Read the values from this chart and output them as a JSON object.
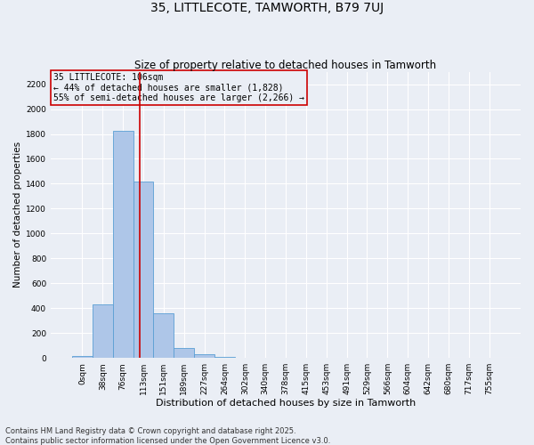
{
  "title": "35, LITTLECOTE, TAMWORTH, B79 7UJ",
  "subtitle": "Size of property relative to detached houses in Tamworth",
  "xlabel": "Distribution of detached houses by size in Tamworth",
  "ylabel": "Number of detached properties",
  "footnote1": "Contains HM Land Registry data © Crown copyright and database right 2025.",
  "footnote2": "Contains public sector information licensed under the Open Government Licence v3.0.",
  "annotation_title": "35 LITTLECOTE: 106sqm",
  "annotation_line1": "← 44% of detached houses are smaller (1,828)",
  "annotation_line2": "55% of semi-detached houses are larger (2,266) →",
  "bar_categories": [
    "0sqm",
    "38sqm",
    "76sqm",
    "113sqm",
    "151sqm",
    "189sqm",
    "227sqm",
    "264sqm",
    "302sqm",
    "340sqm",
    "378sqm",
    "415sqm",
    "453sqm",
    "491sqm",
    "529sqm",
    "566sqm",
    "604sqm",
    "642sqm",
    "680sqm",
    "717sqm",
    "755sqm"
  ],
  "bar_values": [
    15,
    430,
    1828,
    1415,
    355,
    80,
    30,
    10,
    0,
    0,
    0,
    0,
    0,
    0,
    0,
    0,
    0,
    0,
    0,
    0,
    0
  ],
  "bar_color": "#aec6e8",
  "bar_edge_color": "#5a9fd4",
  "bg_color": "#eaeef5",
  "grid_color": "#ffffff",
  "vline_color": "#cc0000",
  "vline_x_index": 2.81,
  "annotation_box_color": "#cc0000",
  "ylim": [
    0,
    2300
  ],
  "yticks": [
    0,
    200,
    400,
    600,
    800,
    1000,
    1200,
    1400,
    1600,
    1800,
    2000,
    2200
  ],
  "title_fontsize": 10,
  "subtitle_fontsize": 8.5,
  "xlabel_fontsize": 8,
  "ylabel_fontsize": 7.5,
  "tick_fontsize": 6.5,
  "annotation_fontsize": 7,
  "footnote_fontsize": 6
}
